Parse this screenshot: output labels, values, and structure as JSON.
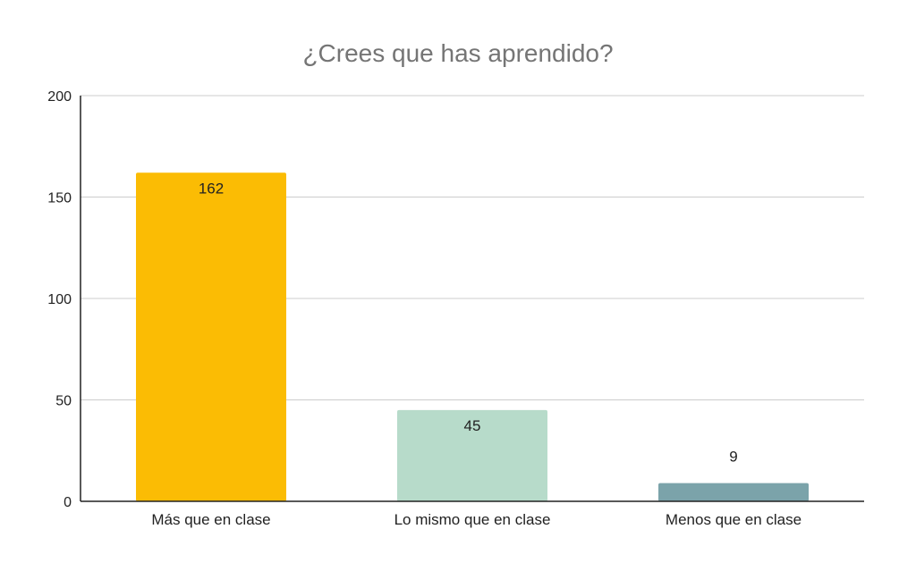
{
  "chart_data": {
    "type": "bar",
    "title": "¿Crees que has aprendido?",
    "xlabel": "",
    "ylabel": "",
    "categories": [
      "Más que en clase",
      "Lo mismo que en clase",
      "Menos que en clase"
    ],
    "values": [
      162,
      45,
      9
    ],
    "colors": [
      "#FBBC04",
      "#B7DBCA",
      "#7BA3AA"
    ],
    "ylim": [
      0,
      200
    ],
    "yticks": [
      0,
      50,
      100,
      150,
      200
    ],
    "grid": true,
    "legend": "none"
  }
}
